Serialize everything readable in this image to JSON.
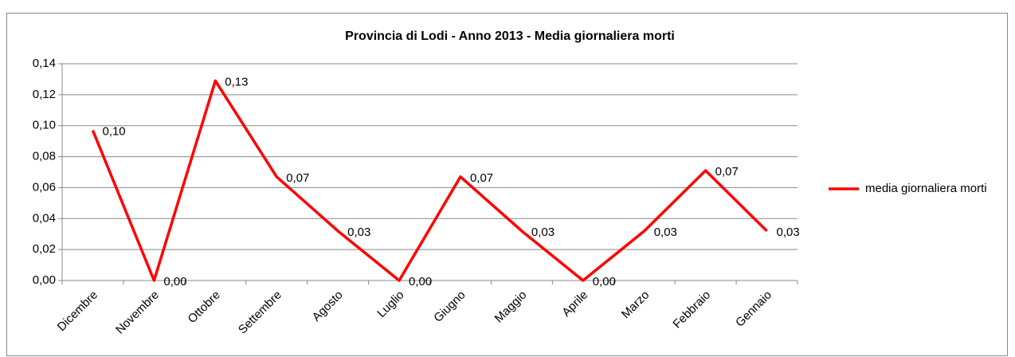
{
  "chart_data": {
    "type": "line",
    "title": "Provincia di Lodi - Anno 2013 - Media giornaliera morti",
    "categories": [
      "Dicembre",
      "Novembre",
      "Ottobre",
      "Settembre",
      "Agosto",
      "Luglio",
      "Giugno",
      "Maggio",
      "Aprile",
      "Marzo",
      "Febbraio",
      "Gennaio"
    ],
    "series": [
      {
        "name": "media giornaliera morti",
        "color": "#ff0000",
        "values": [
          0.097,
          0,
          0.129,
          0.067,
          0.032,
          0,
          0.067,
          0.032,
          0,
          0.032,
          0.071,
          0.032
        ],
        "value_labels": [
          "0,10",
          "0,00",
          "0,13",
          "0,07",
          "0,03",
          "0,00",
          "0,07",
          "0,03",
          "0,00",
          "0,03",
          "0,07",
          "0,03"
        ]
      }
    ],
    "ylim": [
      0,
      0.14
    ],
    "yticks": [
      {
        "value": 0,
        "label": "0,00"
      },
      {
        "value": 0.02,
        "label": "0,02"
      },
      {
        "value": 0.04,
        "label": "0,04"
      },
      {
        "value": 0.06,
        "label": "0,06"
      },
      {
        "value": 0.08,
        "label": "0,08"
      },
      {
        "value": 0.1,
        "label": "0,10"
      },
      {
        "value": 0.12,
        "label": "0,12"
      },
      {
        "value": 0.14,
        "label": "0,14"
      }
    ],
    "grid": true,
    "legend": "right"
  }
}
